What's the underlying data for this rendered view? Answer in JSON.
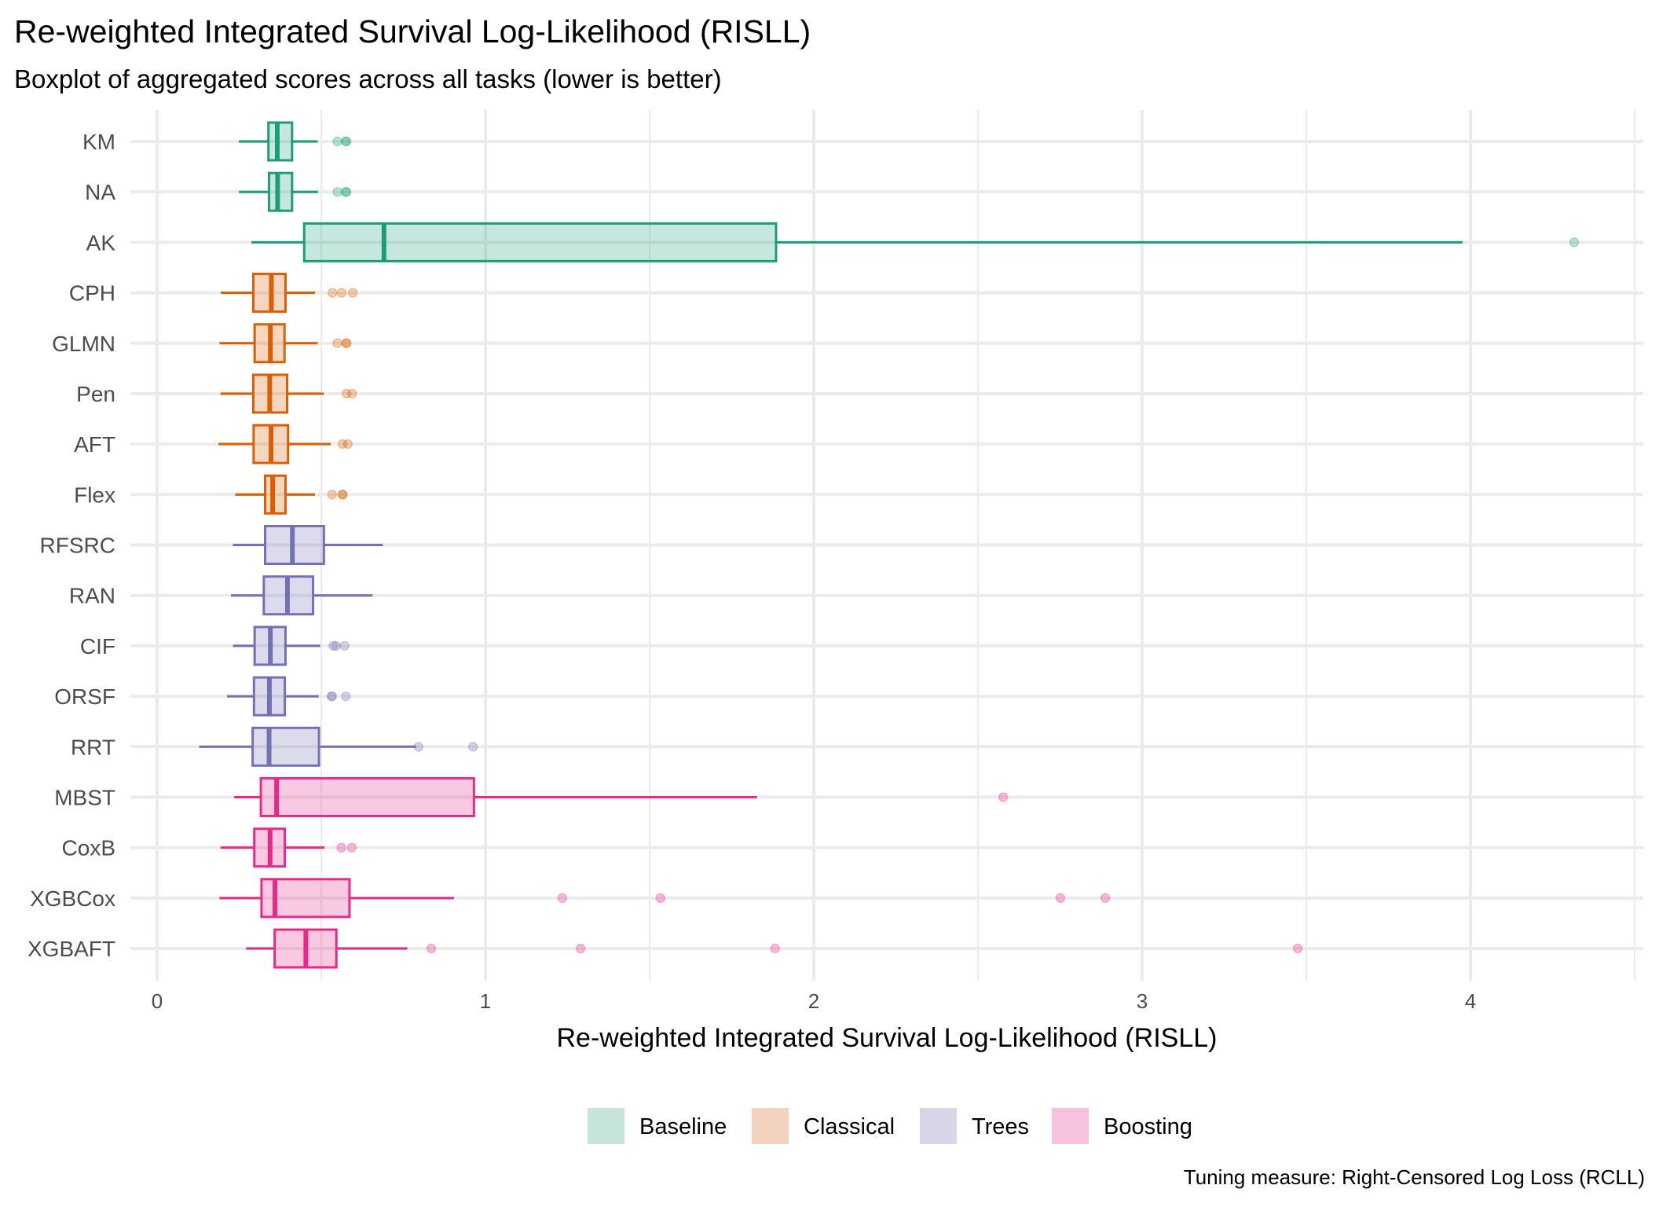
{
  "chart_data": {
    "type": "boxplot",
    "orientation": "horizontal",
    "title": "Re-weighted Integrated Survival Log-Likelihood (RISLL)",
    "subtitle": "Boxplot of aggregated scores across all tasks (lower is better)",
    "xlabel": "Re-weighted Integrated Survival Log-Likelihood (RISLL)",
    "ylabel": "",
    "caption": "Tuning measure: Right-Censored Log Loss (RCLL)",
    "xlim": [
      0,
      4.5
    ],
    "x_ticks": [
      0,
      1,
      2,
      3,
      4
    ],
    "x_tick_labels": [
      "0",
      "1",
      "2",
      "3",
      "4"
    ],
    "grid": true,
    "legend_position": "bottom",
    "groups": [
      {
        "name": "Baseline",
        "color": "#1B9E77",
        "fill": "#C6E4DA"
      },
      {
        "name": "Classical",
        "color": "#D95F02",
        "fill": "#F3D2BE"
      },
      {
        "name": "Trees",
        "color": "#7570B3",
        "fill": "#D7D6E9"
      },
      {
        "name": "Boosting",
        "color": "#E7298A",
        "fill": "#F7C2DD"
      }
    ],
    "series": [
      {
        "name": "KM",
        "group": "Baseline",
        "whisker_low": 0.249,
        "q1": 0.339,
        "median": 0.366,
        "q3": 0.411,
        "whisker_high": 0.489,
        "outliers": [
          0.549,
          0.574,
          0.577
        ]
      },
      {
        "name": "NA",
        "group": "Baseline",
        "whisker_low": 0.249,
        "q1": 0.341,
        "median": 0.367,
        "q3": 0.411,
        "whisker_high": 0.49,
        "outliers": [
          0.549,
          0.574,
          0.577
        ]
      },
      {
        "name": "AK",
        "group": "Baseline",
        "whisker_low": 0.287,
        "q1": 0.448,
        "median": 0.691,
        "q3": 1.885,
        "whisker_high": 3.976,
        "outliers": [
          4.316
        ]
      },
      {
        "name": "CPH",
        "group": "Classical",
        "whisker_low": 0.194,
        "q1": 0.293,
        "median": 0.348,
        "q3": 0.391,
        "whisker_high": 0.481,
        "outliers": [
          0.534,
          0.562,
          0.596
        ]
      },
      {
        "name": "GLMN",
        "group": "Classical",
        "whisker_low": 0.19,
        "q1": 0.297,
        "median": 0.345,
        "q3": 0.388,
        "whisker_high": 0.489,
        "outliers": [
          0.549,
          0.575,
          0.578
        ]
      },
      {
        "name": "Pen",
        "group": "Classical",
        "whisker_low": 0.193,
        "q1": 0.293,
        "median": 0.343,
        "q3": 0.396,
        "whisker_high": 0.508,
        "outliers": [
          0.577,
          0.594
        ]
      },
      {
        "name": "AFT",
        "group": "Classical",
        "whisker_low": 0.187,
        "q1": 0.294,
        "median": 0.347,
        "q3": 0.399,
        "whisker_high": 0.529,
        "outliers": [
          0.565,
          0.581
        ]
      },
      {
        "name": "Flex",
        "group": "Classical",
        "whisker_low": 0.238,
        "q1": 0.329,
        "median": 0.352,
        "q3": 0.391,
        "whisker_high": 0.481,
        "outliers": [
          0.533,
          0.564,
          0.566
        ]
      },
      {
        "name": "RFSRC",
        "group": "Trees",
        "whisker_low": 0.231,
        "q1": 0.329,
        "median": 0.412,
        "q3": 0.508,
        "whisker_high": 0.687,
        "outliers": []
      },
      {
        "name": "RAN",
        "group": "Trees",
        "whisker_low": 0.225,
        "q1": 0.325,
        "median": 0.397,
        "q3": 0.475,
        "whisker_high": 0.656,
        "outliers": []
      },
      {
        "name": "CIF",
        "group": "Trees",
        "whisker_low": 0.231,
        "q1": 0.297,
        "median": 0.345,
        "q3": 0.391,
        "whisker_high": 0.497,
        "outliers": [
          0.537,
          0.545,
          0.571
        ]
      },
      {
        "name": "ORSF",
        "group": "Trees",
        "whisker_low": 0.213,
        "q1": 0.295,
        "median": 0.342,
        "q3": 0.389,
        "whisker_high": 0.492,
        "outliers": [
          0.531,
          0.533,
          0.575
        ]
      },
      {
        "name": "RRT",
        "group": "Trees",
        "whisker_low": 0.128,
        "q1": 0.291,
        "median": 0.341,
        "q3": 0.493,
        "whisker_high": 0.789,
        "outliers": [
          0.796,
          0.962
        ]
      },
      {
        "name": "MBST",
        "group": "Boosting",
        "whisker_low": 0.235,
        "q1": 0.316,
        "median": 0.364,
        "q3": 0.965,
        "whisker_high": 1.827,
        "outliers": [
          2.577
        ]
      },
      {
        "name": "CoxB",
        "group": "Boosting",
        "whisker_low": 0.193,
        "q1": 0.296,
        "median": 0.344,
        "q3": 0.389,
        "whisker_high": 0.51,
        "outliers": [
          0.561,
          0.593
        ]
      },
      {
        "name": "XGBCox",
        "group": "Boosting",
        "whisker_low": 0.19,
        "q1": 0.318,
        "median": 0.359,
        "q3": 0.586,
        "whisker_high": 0.904,
        "outliers": [
          1.234,
          1.533,
          2.751,
          2.888
        ]
      },
      {
        "name": "XGBAFT",
        "group": "Boosting",
        "whisker_low": 0.271,
        "q1": 0.358,
        "median": 0.453,
        "q3": 0.546,
        "whisker_high": 0.762,
        "outliers": [
          0.835,
          1.29,
          1.882,
          3.474
        ]
      }
    ]
  }
}
